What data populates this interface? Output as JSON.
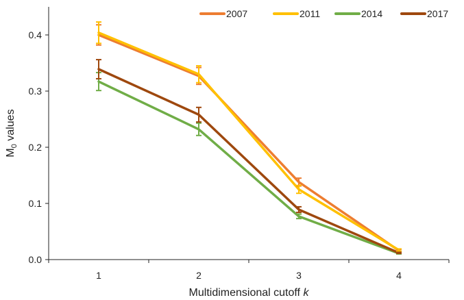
{
  "chart_data": {
    "type": "line",
    "x": [
      1,
      2,
      3,
      4
    ],
    "xlabel": "Multidimensional cutoff",
    "xlabel_var": "k",
    "ylabel": "M",
    "ylabel_sub": "0",
    "ylabel_rest": " values",
    "ylim": [
      0,
      0.45
    ],
    "xlim": [
      0.5,
      4.5
    ],
    "yticks": [
      0.0,
      0.1,
      0.2,
      0.3,
      0.4
    ],
    "ytick_labels": [
      "0.0",
      "0.1",
      "0.2",
      "0.3",
      "0.4"
    ],
    "xtick_labels": [
      "1",
      "2",
      "3",
      "4"
    ],
    "legend_position": "top-right",
    "grid": false,
    "series": [
      {
        "name": "2007",
        "color": "#ED7D31",
        "values": [
          0.4,
          0.327,
          0.138,
          0.016
        ],
        "errors": [
          0.018,
          0.015,
          0.007,
          0.002
        ]
      },
      {
        "name": "2011",
        "color": "#FFC000",
        "values": [
          0.404,
          0.33,
          0.125,
          0.017
        ],
        "errors": [
          0.019,
          0.015,
          0.007,
          0.002
        ]
      },
      {
        "name": "2014",
        "color": "#70AD47",
        "values": [
          0.317,
          0.232,
          0.077,
          0.011
        ],
        "errors": [
          0.016,
          0.011,
          0.004,
          0.001
        ]
      },
      {
        "name": "2017",
        "color": "#9E480E",
        "values": [
          0.339,
          0.258,
          0.089,
          0.012
        ],
        "errors": [
          0.017,
          0.013,
          0.005,
          0.001
        ]
      }
    ]
  }
}
